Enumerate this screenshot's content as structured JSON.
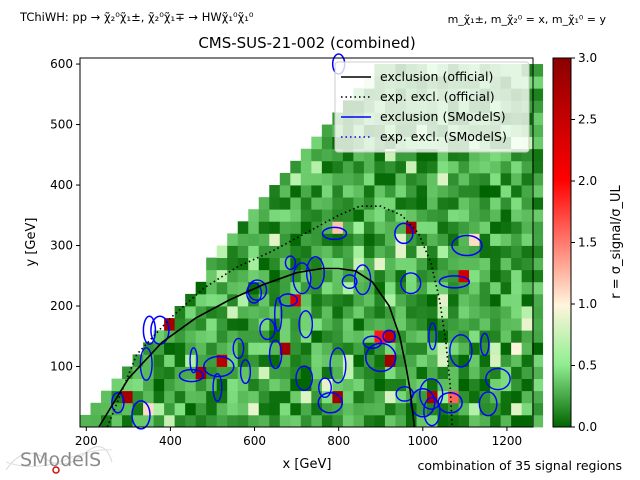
{
  "header": {
    "topology": "TChiWH: pp → χ̃₂⁰χ̃₁±, χ̃₂⁰χ̃₁∓ → HWχ̃₁⁰χ̃₁⁰",
    "mass_relation": "m_χ̃₁±, m_χ̃₂⁰ = x, m_χ̃₁⁰ = y"
  },
  "footer": {
    "signal_regions_note": "combination of 35 signal regions",
    "logo_text": "SModelS"
  },
  "colors": {
    "green_dark": "#006400",
    "green_mid": "#1f8a1f",
    "cream": "#f5e6c8",
    "pink": "#e8a0a0",
    "red": "#ff0000",
    "dark_red": "#b0001a",
    "exclusion_official": "#000000",
    "exclusion_smodels": "#0000ff"
  },
  "chart_data": {
    "type": "heatmap",
    "title": "CMS-SUS-21-002 (combined)",
    "xlabel": "x [GeV]",
    "ylabel": "y [GeV]",
    "xlim": [
      185,
      1262
    ],
    "ylim": [
      0,
      610
    ],
    "xticks": [
      200,
      400,
      600,
      800,
      1000,
      1200
    ],
    "yticks": [
      100,
      200,
      300,
      400,
      500,
      600
    ],
    "colorbar": {
      "label": "r = σ_signal/σ_UL",
      "range": [
        0,
        3.0
      ],
      "ticks": [
        "0.0",
        "0.5",
        "1.0",
        "1.5",
        "2.0",
        "2.5",
        "3.0"
      ],
      "colormap": [
        "#006400",
        "#90ee90",
        "#fff5dc",
        "#ff0000",
        "#8b0000"
      ]
    },
    "grid": false,
    "legend": {
      "placement": "top-right",
      "entries": [
        {
          "label": "exclusion (official)",
          "color": "#000000",
          "style": "solid"
        },
        {
          "label": "exp. excl. (official)",
          "color": "#000000",
          "style": "dotted"
        },
        {
          "label": "exclusion (SModelS)",
          "color": "#0000ff",
          "style": "solid"
        },
        {
          "label": "exp. excl. (SModelS)",
          "color": "#0000ff",
          "style": "dotted"
        }
      ]
    },
    "heatmap_summary": "green background (r < 0.5) with scattered cream and red cells (r > 1) mostly in x 350-1100, y 50-300",
    "hot_cells": [
      {
        "x": 275,
        "y": 40,
        "r": 2.8
      },
      {
        "x": 375,
        "y": 160,
        "r": 2.8
      },
      {
        "x": 450,
        "y": 85,
        "r": 2.8
      },
      {
        "x": 515,
        "y": 100,
        "r": 2.6
      },
      {
        "x": 650,
        "y": 120,
        "r": 2.8
      },
      {
        "x": 680,
        "y": 210,
        "r": 2.3
      },
      {
        "x": 780,
        "y": 40,
        "r": 2.8
      },
      {
        "x": 900,
        "y": 115,
        "r": 2.8
      },
      {
        "x": 920,
        "y": 150,
        "r": 2.5
      },
      {
        "x": 955,
        "y": 320,
        "r": 2.8
      },
      {
        "x": 1000,
        "y": 40,
        "r": 2.7
      },
      {
        "x": 1075,
        "y": 240,
        "r": 2.4
      },
      {
        "x": 800,
        "y": 600,
        "r": 2.9
      },
      {
        "x": 330,
        "y": 20,
        "r": 1.1
      },
      {
        "x": 790,
        "y": 320,
        "r": 1.2
      },
      {
        "x": 1215,
        "y": 120,
        "r": 1.0
      },
      {
        "x": 1105,
        "y": 300,
        "r": 1.1
      },
      {
        "x": 350,
        "y": 160,
        "r": 1.9
      },
      {
        "x": 880,
        "y": 140,
        "r": 1.9
      },
      {
        "x": 1065,
        "y": 40,
        "r": 1.6
      }
    ],
    "series": [
      {
        "name": "exclusion (official)",
        "x": [
          230,
          300,
          380,
          460,
          540,
          620,
          700,
          760,
          800,
          840,
          880,
          920,
          945,
          960,
          970,
          975,
          980
        ],
        "y": [
          0,
          80,
          140,
          180,
          210,
          235,
          255,
          262,
          262,
          258,
          240,
          200,
          150,
          100,
          60,
          30,
          0
        ]
      },
      {
        "name": "exp. excl. (official)",
        "x": [
          250,
          320,
          400,
          480,
          560,
          640,
          720,
          800,
          850,
          900,
          950,
          990,
          1020,
          1040,
          1055,
          1065,
          1070
        ],
        "y": [
          0,
          120,
          180,
          230,
          265,
          290,
          320,
          350,
          365,
          365,
          350,
          320,
          270,
          210,
          140,
          70,
          0
        ]
      }
    ],
    "smodels_contours_note": "many small blue closed contours (SModelS exclusion) scattered around isolated r > 1 cells"
  }
}
